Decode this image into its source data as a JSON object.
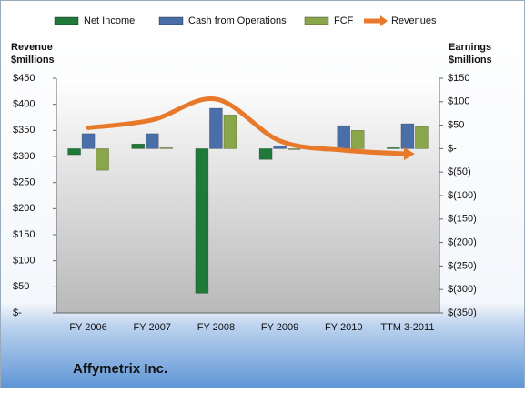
{
  "chart_data": {
    "type": "bar",
    "title": "Affymetrix Inc.",
    "ylabel": [
      "Revenue",
      "$millions"
    ],
    "y2label": [
      "Earnings",
      "$millions"
    ],
    "categories": [
      "FY 2006",
      "FY 2007",
      "FY 2008",
      "FY 2009",
      "FY 2010",
      "TTM 3-2011"
    ],
    "series": [
      {
        "name": "Net Income",
        "color": "#1f7a3a",
        "axis": "y2",
        "kind": "bar",
        "values": [
          -13,
          10,
          -308,
          -23,
          -5,
          2
        ]
      },
      {
        "name": "Cash from Operations",
        "color": "#4a6fa8",
        "axis": "y2",
        "kind": "bar",
        "values": [
          32,
          32,
          86,
          5,
          49,
          53
        ]
      },
      {
        "name": "FCF",
        "color": "#8aa64a",
        "axis": "y2",
        "kind": "bar",
        "values": [
          -46,
          2,
          72,
          -2,
          39,
          47
        ]
      },
      {
        "name": "Revenues",
        "color": "#e8792b",
        "axis": "y",
        "kind": "line",
        "values": [
          355,
          370,
          410,
          330,
          312,
          305
        ]
      }
    ],
    "ylim": [
      0,
      450
    ],
    "yticks": [
      {
        "value": 0,
        "label": "$-"
      },
      {
        "value": 50,
        "label": "$50"
      },
      {
        "value": 100,
        "label": "$100"
      },
      {
        "value": 150,
        "label": "$150"
      },
      {
        "value": 200,
        "label": "$200"
      },
      {
        "value": 250,
        "label": "$250"
      },
      {
        "value": 300,
        "label": "$300"
      },
      {
        "value": 350,
        "label": "$350"
      },
      {
        "value": 400,
        "label": "$400"
      },
      {
        "value": 450,
        "label": "$450"
      }
    ],
    "y2lim": [
      -350,
      150
    ],
    "y2ticks": [
      {
        "value": 150,
        "label": "$150"
      },
      {
        "value": 100,
        "label": "$100"
      },
      {
        "value": 50,
        "label": "$50"
      },
      {
        "value": 0,
        "label": "$-"
      },
      {
        "value": -50,
        "label": "$(50)"
      },
      {
        "value": -100,
        "label": "$(100)"
      },
      {
        "value": -150,
        "label": "$(150)"
      },
      {
        "value": -200,
        "label": "$(200)"
      },
      {
        "value": -250,
        "label": "$(250)"
      },
      {
        "value": -300,
        "label": "$(300)"
      },
      {
        "value": -350,
        "label": "$(350)"
      }
    ]
  }
}
